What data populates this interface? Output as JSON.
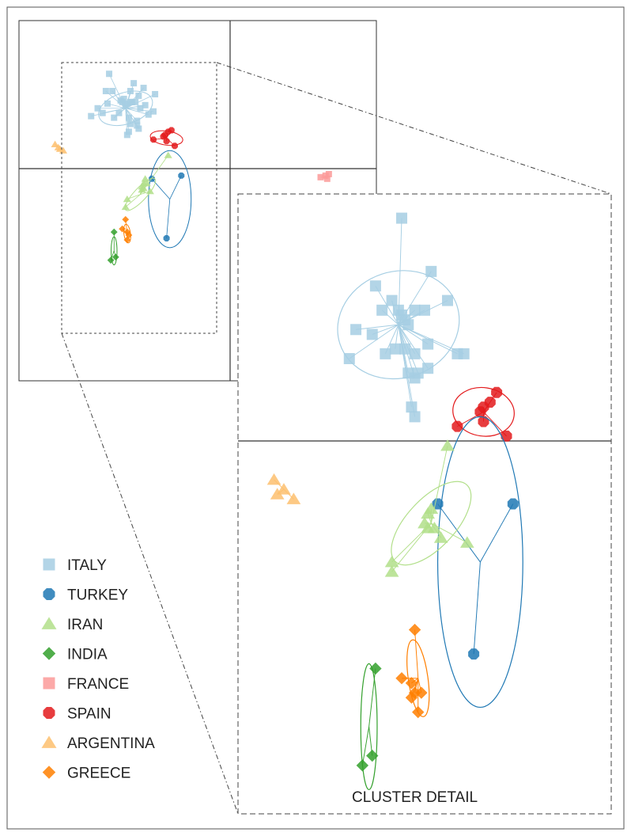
{
  "chart_data": {
    "type": "scatter",
    "description_note": "",
    "legend_position": "bottom-left",
    "detail_label": "CLUSTER DETAIL",
    "series": [
      {
        "name": "ITALY",
        "color": "#a6cee3",
        "marker": "square"
      },
      {
        "name": "TURKEY",
        "color": "#1f78b4",
        "marker": "circle"
      },
      {
        "name": "IRAN",
        "color": "#b2df8a",
        "marker": "triangle"
      },
      {
        "name": "INDIA",
        "color": "#33a02c",
        "marker": "diamond"
      },
      {
        "name": "FRANCE",
        "color": "#fb9a99",
        "marker": "square"
      },
      {
        "name": "SPAIN",
        "color": "#e31a1c",
        "marker": "circle"
      },
      {
        "name": "ARGENTINA",
        "color": "#fdbf6f",
        "marker": "triangle"
      },
      {
        "name": "GREECE",
        "color": "#ff7f00",
        "marker": "diamond"
      }
    ],
    "overview": {
      "xlim": [
        -1.18,
        1.0
      ],
      "ylim": [
        -1.35,
        0.95
      ],
      "groups": [
        {
          "series": "ITALY",
          "center": [
            -0.53,
            0.39
          ],
          "ellipse": {
            "rx": 0.17,
            "ry": 0.1,
            "angle": -18
          },
          "points": [
            [
              -0.63,
              0.61
            ],
            [
              -0.65,
              0.5
            ],
            [
              -0.64,
              0.42
            ],
            [
              -0.7,
              0.39
            ],
            [
              -0.67,
              0.36
            ],
            [
              -0.61,
              0.5
            ],
            [
              -0.56,
              0.44
            ],
            [
              -0.55,
              0.43
            ],
            [
              -0.54,
              0.45
            ],
            [
              -0.53,
              0.41
            ],
            [
              -0.52,
              0.42
            ],
            [
              -0.5,
              0.43
            ],
            [
              -0.49,
              0.43
            ],
            [
              -0.47,
              0.43
            ],
            [
              -0.45,
              0.47
            ],
            [
              -0.44,
              0.39
            ],
            [
              -0.41,
              0.41
            ],
            [
              -0.39,
              0.35
            ],
            [
              -0.36,
              0.37
            ],
            [
              -0.35,
              0.48
            ],
            [
              -0.42,
              0.52
            ],
            [
              -0.48,
              0.55
            ],
            [
              -0.5,
              0.5
            ],
            [
              -0.57,
              0.36
            ],
            [
              -0.6,
              0.33
            ],
            [
              -0.51,
              0.33
            ],
            [
              -0.5,
              0.29
            ],
            [
              -0.46,
              0.31
            ],
            [
              -0.45,
              0.26
            ],
            [
              -0.74,
              0.34
            ],
            [
              -0.51,
              0.24
            ],
            [
              -0.46,
              0.28
            ],
            [
              -0.52,
              0.22
            ]
          ]
        },
        {
          "series": "SPAIN",
          "center": [
            -0.28,
            0.2
          ],
          "ellipse": {
            "rx": 0.1,
            "ry": 0.045,
            "angle": 8
          },
          "points": [
            [
              -0.36,
              0.19
            ],
            [
              -0.3,
              0.21
            ],
            [
              -0.29,
              0.22
            ],
            [
              -0.27,
              0.24
            ],
            [
              -0.25,
              0.25
            ],
            [
              -0.28,
              0.18
            ],
            [
              -0.23,
              0.15
            ]
          ]
        },
        {
          "series": "TURKEY",
          "center": [
            -0.26,
            -0.19
          ],
          "ellipse": {
            "rx": 0.13,
            "ry": 0.31,
            "angle": 0
          },
          "points": [
            [
              -0.37,
              -0.06
            ],
            [
              -0.19,
              -0.04
            ],
            [
              -0.28,
              -0.44
            ]
          ]
        },
        {
          "series": "IRAN",
          "center": [
            -0.44,
            -0.16
          ],
          "ellipse": {
            "rx": 0.13,
            "ry": 0.04,
            "angle": -47
          },
          "points": [
            [
              -0.27,
              0.09
            ],
            [
              -0.41,
              -0.06
            ],
            [
              -0.42,
              -0.09
            ],
            [
              -0.4,
              -0.09
            ],
            [
              -0.43,
              -0.13
            ],
            [
              -0.43,
              -0.11
            ],
            [
              -0.42,
              -0.12
            ],
            [
              -0.38,
              -0.14
            ],
            [
              -0.53,
              -0.24
            ],
            [
              -0.52,
              -0.19
            ]
          ]
        },
        {
          "series": "INDIA",
          "center": [
            -0.6,
            -0.52
          ],
          "ellipse": {
            "rx": 0.018,
            "ry": 0.09,
            "angle": 0
          },
          "points": [
            [
              -0.6,
              -0.4
            ],
            [
              -0.62,
              -0.58
            ],
            [
              -0.59,
              -0.56
            ]
          ]
        },
        {
          "series": "GREECE",
          "center": [
            -0.52,
            -0.41
          ],
          "ellipse": {
            "rx": 0.02,
            "ry": 0.06,
            "angle": -8
          },
          "points": [
            [
              -0.53,
              -0.32
            ],
            [
              -0.55,
              -0.38
            ],
            [
              -0.52,
              -0.4
            ],
            [
              -0.51,
              -0.42
            ],
            [
              -0.52,
              -0.45
            ]
          ]
        },
        {
          "series": "ARGENTINA",
          "center": [
            -0.94,
            0.14
          ],
          "ellipse": null,
          "points": [
            [
              -0.96,
              0.16
            ],
            [
              -0.94,
              0.14
            ],
            [
              -0.93,
              0.13
            ],
            [
              -0.91,
              0.12
            ]
          ]
        },
        {
          "series": "FRANCE",
          "center": [
            0.69,
            -0.05
          ],
          "ellipse": null,
          "points": [
            [
              0.66,
              -0.05
            ],
            [
              0.69,
              -0.04
            ],
            [
              0.7,
              -0.06
            ],
            [
              0.71,
              -0.03
            ]
          ]
        }
      ]
    },
    "detail": {
      "xlim": [
        -1.02,
        0.12
      ],
      "ylim": [
        -0.62,
        0.66
      ],
      "groups": [
        {
          "series": "ITALY",
          "center": [
            -0.53,
            0.39
          ],
          "ellipse": {
            "rx": 0.188,
            "ry": 0.11,
            "angle": -18
          },
          "points": [
            [
              -0.52,
              0.61
            ],
            [
              -0.6,
              0.47
            ],
            [
              -0.58,
              0.42
            ],
            [
              -0.66,
              0.38
            ],
            [
              -0.61,
              0.37
            ],
            [
              -0.68,
              0.32
            ],
            [
              -0.55,
              0.44
            ],
            [
              -0.53,
              0.42
            ],
            [
              -0.52,
              0.41
            ],
            [
              -0.51,
              0.4
            ],
            [
              -0.5,
              0.39
            ],
            [
              -0.48,
              0.42
            ],
            [
              -0.45,
              0.42
            ],
            [
              -0.43,
              0.5
            ],
            [
              -0.38,
              0.44
            ],
            [
              -0.35,
              0.33
            ],
            [
              -0.33,
              0.33
            ],
            [
              -0.44,
              0.35
            ],
            [
              -0.48,
              0.33
            ],
            [
              -0.54,
              0.34
            ],
            [
              -0.57,
              0.33
            ],
            [
              -0.5,
              0.29
            ],
            [
              -0.48,
              0.28
            ],
            [
              -0.49,
              0.22
            ],
            [
              -0.47,
              0.29
            ],
            [
              -0.44,
              0.3
            ],
            [
              -0.51,
              0.34
            ],
            [
              -0.48,
              0.2
            ]
          ]
        },
        {
          "series": "SPAIN",
          "center": [
            -0.27,
            0.21
          ],
          "ellipse": {
            "rx": 0.094,
            "ry": 0.05,
            "angle": 8
          },
          "points": [
            [
              -0.35,
              0.18
            ],
            [
              -0.28,
              0.21
            ],
            [
              -0.27,
              0.22
            ],
            [
              -0.25,
              0.23
            ],
            [
              -0.23,
              0.25
            ],
            [
              -0.27,
              0.19
            ],
            [
              -0.2,
              0.16
            ]
          ]
        },
        {
          "series": "TURKEY",
          "center": [
            -0.28,
            -0.1
          ],
          "ellipse": {
            "rx": 0.13,
            "ry": 0.3,
            "angle": 0
          },
          "points": [
            [
              -0.41,
              0.02
            ],
            [
              -0.18,
              0.02
            ],
            [
              -0.3,
              -0.29
            ]
          ]
        },
        {
          "series": "IRAN",
          "center": [
            -0.43,
            -0.02
          ],
          "ellipse": {
            "rx": 0.16,
            "ry": 0.05,
            "angle": -47
          },
          "points": [
            [
              -0.38,
              0.14
            ],
            [
              -0.43,
              0.01
            ],
            [
              -0.44,
              0.0
            ],
            [
              -0.45,
              -0.02
            ],
            [
              -0.44,
              -0.03
            ],
            [
              -0.42,
              -0.03
            ],
            [
              -0.4,
              -0.05
            ],
            [
              -0.55,
              -0.1
            ],
            [
              -0.55,
              -0.12
            ],
            [
              -0.32,
              -0.06
            ]
          ]
        },
        {
          "series": "INDIA",
          "center": [
            -0.62,
            -0.44
          ],
          "ellipse": {
            "rx": 0.025,
            "ry": 0.13,
            "angle": 0
          },
          "points": [
            [
              -0.6,
              -0.32
            ],
            [
              -0.64,
              -0.52
            ],
            [
              -0.61,
              -0.5
            ]
          ]
        },
        {
          "series": "GREECE",
          "center": [
            -0.47,
            -0.34
          ],
          "ellipse": {
            "rx": 0.03,
            "ry": 0.08,
            "angle": -8
          },
          "points": [
            [
              -0.48,
              -0.24
            ],
            [
              -0.52,
              -0.34
            ],
            [
              -0.49,
              -0.35
            ],
            [
              -0.48,
              -0.37
            ],
            [
              -0.49,
              -0.38
            ],
            [
              -0.46,
              -0.37
            ],
            [
              -0.47,
              -0.41
            ]
          ]
        },
        {
          "series": "ARGENTINA",
          "center": [
            -0.88,
            0.05
          ],
          "ellipse": null,
          "points": [
            [
              -0.91,
              0.07
            ],
            [
              -0.9,
              0.04
            ],
            [
              -0.88,
              0.05
            ],
            [
              -0.85,
              0.03
            ]
          ]
        }
      ]
    }
  }
}
